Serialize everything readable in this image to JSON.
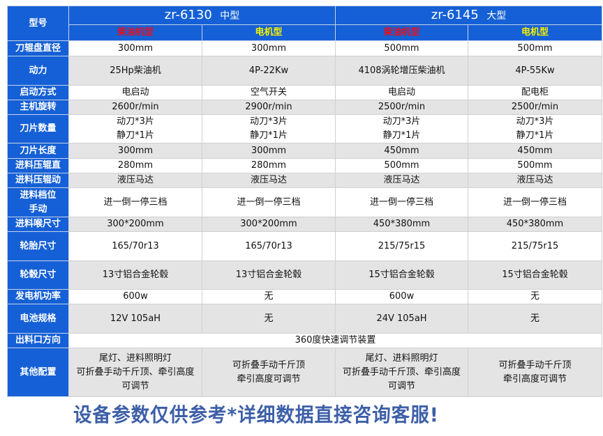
{
  "header": {
    "model_label": "型号",
    "model_a": "zr-6130",
    "model_a_size": "中型",
    "model_b": "zr-6145",
    "model_b_size": "大型",
    "variants": [
      {
        "label": "柴油机型",
        "color": "#e8101a"
      },
      {
        "label": "电机型",
        "color": "#f5f000"
      },
      {
        "label": "柴油机型",
        "color": "#e8101a"
      },
      {
        "label": "电机型",
        "color": "#f5f000"
      }
    ]
  },
  "rows": [
    {
      "label": "刀辊盘直径",
      "values": [
        "300mm",
        "300mm",
        "500mm",
        "500mm"
      ],
      "h": 22
    },
    {
      "label": "动力",
      "values": [
        "25Hp柴油机",
        "4P-22Kw",
        "4108涡轮增压柴油机",
        "4P-55Kw"
      ],
      "h": 42
    },
    {
      "label": "启动方式",
      "values": [
        "电启动",
        "空气开关",
        "电启动",
        "配电柜"
      ],
      "h": 21
    },
    {
      "label": "主机旋转",
      "values": [
        "2600r/min",
        "2900r/min",
        "2500r/min",
        "2500r/min"
      ],
      "h": 21
    },
    {
      "label": "刀片数量",
      "values": [
        "动刀*3片\n静刀*1片",
        "动刀*3片\n静刀*1片",
        "动刀*3片\n静刀*1片",
        "动刀*3片\n静刀*1片"
      ],
      "h": 41
    },
    {
      "label": "刀片长度",
      "values": [
        "300mm",
        "300mm",
        "450mm",
        "450mm"
      ],
      "h": 22
    },
    {
      "label": "进料压辊直",
      "values": [
        "280mm",
        "280mm",
        "500mm",
        "500mm"
      ],
      "h": 20
    },
    {
      "label": "进料压辊动",
      "values": [
        "液压马达",
        "液压马达",
        "液压马达",
        "液压马达"
      ],
      "h": 21
    },
    {
      "label": "进料档位\n手动",
      "values": [
        "进一倒一停三档",
        "进一倒一停三档",
        "进一倒一停三档",
        "进一倒一停三档"
      ],
      "h": 42
    },
    {
      "label": "进料喉尺寸",
      "values": [
        "300*200mm",
        "300*200mm",
        "450*380mm",
        "450*380mm"
      ],
      "h": 21
    },
    {
      "label": "轮胎尺寸",
      "values": [
        "165/70r13",
        "165/70r13",
        "215/75r15",
        "215/75r15"
      ],
      "h": 42
    },
    {
      "label": "轮毂尺寸",
      "values": [
        "13寸铝合金轮毂",
        "13寸铝合金轮毂",
        "15寸铝合金轮毂",
        "15寸铝合金轮毂"
      ],
      "h": 41
    },
    {
      "label": "发电机功率",
      "values": [
        "600w",
        "无",
        "600w",
        "无"
      ],
      "h": 21
    },
    {
      "label": "电池规格",
      "values": [
        "12V 105aH",
        "无",
        "24V 105aH",
        "无"
      ],
      "h": 42
    },
    {
      "label": "出料口方向",
      "values": [
        "360度快速调节装置"
      ],
      "h": 21
    },
    {
      "label": "其他配置",
      "values": [
        "尾灯、进料照明灯\n可折叠手动千斤顶、牵引高度\n可调节",
        "可折叠手动千斤顶\n牵引高度可调节",
        "尾灯、进料照明灯\n可折叠手动千斤顶、牵引高度\n可调节",
        "可折叠手动千斤顶\n牵引高度可调节"
      ],
      "h": 70
    }
  ],
  "footer": "设备参数仅供参考*详细数据直接咨询客服!"
}
